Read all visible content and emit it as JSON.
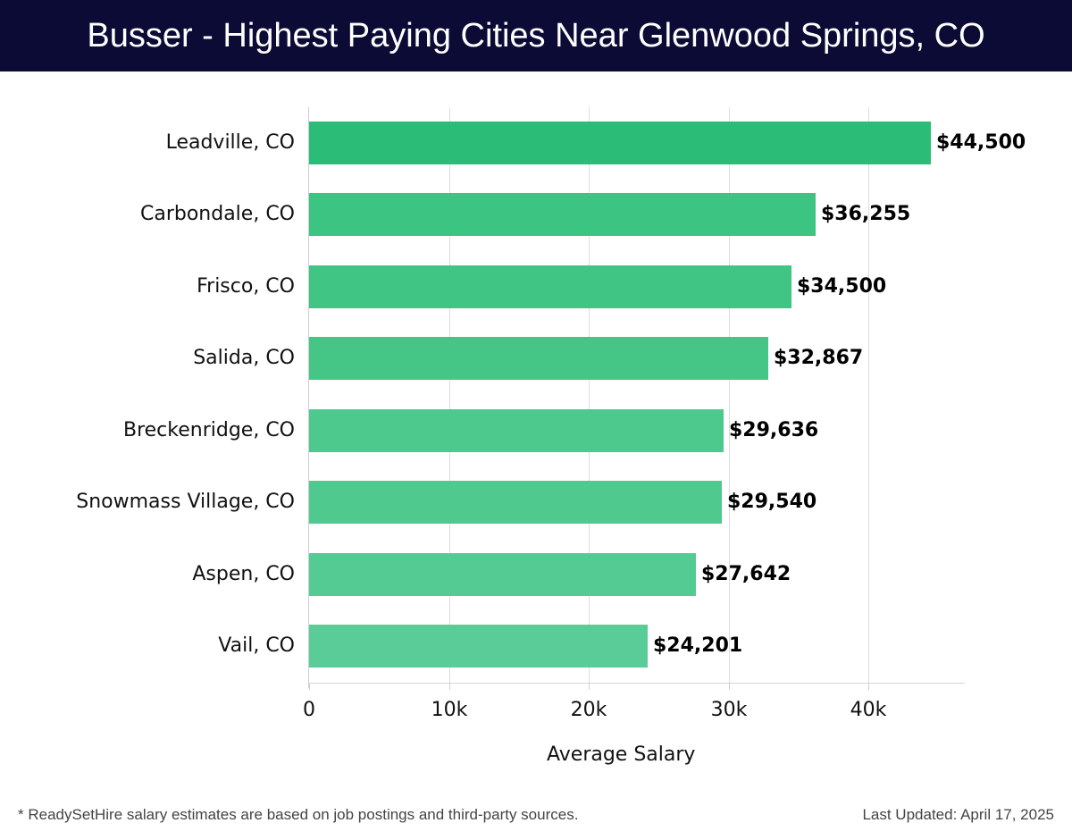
{
  "header": {
    "title": "Busser - Highest Paying Cities Near Glenwood Springs, CO"
  },
  "footer": {
    "note": "* ReadySetHire salary estimates are based on job postings and third-party sources.",
    "updated": "Last Updated: April 17, 2025"
  },
  "colors": {
    "header_bg": "#0c0b35",
    "bar_top": "#2bbd77",
    "bar_bottom": "#5acc98"
  },
  "chart_data": {
    "type": "bar",
    "orientation": "horizontal",
    "title": "Busser - Highest Paying Cities Near Glenwood Springs, CO",
    "xlabel": "Average Salary",
    "ylabel": "",
    "categories": [
      "Leadville, CO",
      "Carbondale, CO",
      "Frisco, CO",
      "Salida, CO",
      "Breckenridge, CO",
      "Snowmass Village, CO",
      "Aspen, CO",
      "Vail, CO"
    ],
    "values": [
      44500,
      36255,
      34500,
      32867,
      29636,
      29540,
      27642,
      24201
    ],
    "value_labels": [
      "$44,500",
      "$36,255",
      "$34,500",
      "$32,867",
      "$29,636",
      "$29,540",
      "$27,642",
      "$24,201"
    ],
    "bar_colors": [
      "#2bbd77",
      "#3cc482",
      "#40c584",
      "#45c687",
      "#4ec98e",
      "#50c98f",
      "#54cb93",
      "#5acc98"
    ],
    "xticks": [
      0,
      10000,
      20000,
      30000,
      40000
    ],
    "xtick_labels": [
      "0",
      "10k",
      "20k",
      "30k",
      "40k"
    ],
    "xlim": [
      0,
      47000
    ],
    "grid": true,
    "legend": null
  }
}
